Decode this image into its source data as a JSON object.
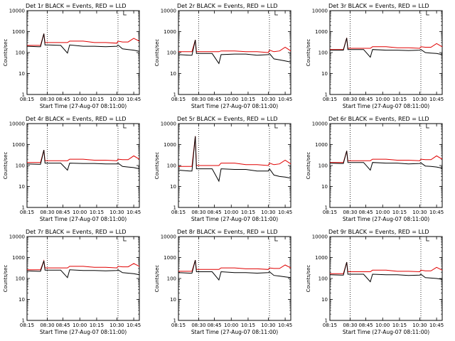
{
  "colors": {
    "events": "#000000",
    "lld": "#e00000",
    "background": "#ffffff"
  },
  "shared": {
    "xlabel": "Start Time (27-Aug-07 08:11:00)",
    "ylabel": "Counts/sec",
    "x_tick_labels": [
      "08:15",
      "08:30",
      "08:45",
      "10:00",
      "10:15",
      "10:30",
      "10:45"
    ],
    "y_tick_labels": [
      "1",
      "10",
      "100",
      "1000",
      "10000"
    ]
  },
  "chart_data": [
    {
      "type": "line",
      "title": "Det 1r BLACK = Events, RED = LLD",
      "xlabel": "Start Time (27-Aug-07 08:11:00)",
      "ylabel": "Counts/sec",
      "x_tick_labels": [
        "08:15",
        "08:30",
        "08:45",
        "10:00",
        "10:15",
        "10:30",
        "10:45"
      ],
      "ylim": [
        1,
        10000
      ],
      "yscale": "log",
      "series": [
        {
          "values": [
            200,
            190,
            190,
            800,
            230,
            230,
            220,
            95,
            230,
            200,
            200,
            190,
            200,
            230,
            150,
            140,
            130,
            115
          ]
        },
        {
          "values": [
            220,
            220,
            220,
            800,
            300,
            300,
            300,
            300,
            350,
            350,
            300,
            300,
            280,
            350,
            320,
            320,
            480,
            350
          ]
        }
      ]
    },
    {
      "type": "line",
      "title": "Det 2r BLACK = Events, RED = LLD",
      "xlabel": "Start Time (27-Aug-07 08:11:00)",
      "ylabel": "Counts/sec",
      "x_tick_labels": [
        "08:15",
        "08:30",
        "08:45",
        "10:00",
        "10:15",
        "10:30",
        "10:45"
      ],
      "ylim": [
        1,
        10000
      ],
      "yscale": "log",
      "series": [
        {
          "values": [
            80,
            75,
            75,
            400,
            90,
            90,
            90,
            30,
            80,
            85,
            85,
            75,
            80,
            90,
            50,
            45,
            40,
            35
          ]
        },
        {
          "values": [
            110,
            110,
            110,
            400,
            110,
            110,
            110,
            110,
            120,
            120,
            110,
            110,
            100,
            130,
            110,
            120,
            180,
            120
          ]
        }
      ]
    },
    {
      "type": "line",
      "title": "Det 3r BLACK = Events, RED = LLD",
      "xlabel": "Start Time (27-Aug-07 08:11:00)",
      "ylabel": "Counts/sec",
      "x_tick_labels": [
        "08:15",
        "08:30",
        "08:45",
        "10:00",
        "10:15",
        "10:30",
        "10:45"
      ],
      "ylim": [
        1,
        10000
      ],
      "yscale": "log",
      "series": [
        {
          "values": [
            130,
            130,
            130,
            500,
            140,
            140,
            140,
            60,
            140,
            130,
            130,
            125,
            130,
            140,
            100,
            95,
            90,
            80
          ]
        },
        {
          "values": [
            140,
            140,
            140,
            500,
            160,
            160,
            160,
            160,
            190,
            190,
            170,
            170,
            160,
            190,
            180,
            180,
            270,
            190
          ]
        }
      ]
    },
    {
      "type": "line",
      "title": "Det 4r BLACK = Events, RED = LLD",
      "xlabel": "Start Time (27-Aug-07 08:11:00)",
      "ylabel": "Counts/sec",
      "x_tick_labels": [
        "08:15",
        "08:30",
        "08:45",
        "10:00",
        "10:15",
        "10:30",
        "10:45"
      ],
      "ylim": [
        1,
        10000
      ],
      "yscale": "log",
      "series": [
        {
          "values": [
            120,
            115,
            115,
            550,
            130,
            130,
            130,
            60,
            130,
            125,
            125,
            120,
            120,
            130,
            90,
            85,
            80,
            70
          ]
        },
        {
          "values": [
            140,
            140,
            140,
            550,
            170,
            170,
            170,
            170,
            200,
            200,
            180,
            180,
            170,
            200,
            190,
            190,
            290,
            200
          ]
        }
      ]
    },
    {
      "type": "line",
      "title": "Det 5r BLACK = Events, RED = LLD",
      "xlabel": "Start Time (27-Aug-07 08:11:00)",
      "ylabel": "Counts/sec",
      "x_tick_labels": [
        "08:15",
        "08:30",
        "08:45",
        "10:00",
        "10:15",
        "10:30",
        "10:45"
      ],
      "ylim": [
        1,
        10000
      ],
      "yscale": "log",
      "series": [
        {
          "values": [
            60,
            55,
            55,
            2500,
            70,
            70,
            70,
            18,
            70,
            65,
            65,
            55,
            55,
            70,
            35,
            30,
            28,
            25
          ]
        },
        {
          "values": [
            90,
            90,
            90,
            2500,
            100,
            100,
            100,
            100,
            130,
            130,
            110,
            110,
            100,
            130,
            110,
            120,
            180,
            120
          ]
        }
      ]
    },
    {
      "type": "line",
      "title": "Det 6r BLACK = Events, RED = LLD",
      "xlabel": "Start Time (27-Aug-07 08:11:00)",
      "ylabel": "Counts/sec",
      "x_tick_labels": [
        "08:15",
        "08:30",
        "08:45",
        "10:00",
        "10:15",
        "10:30",
        "10:45"
      ],
      "ylim": [
        1,
        10000
      ],
      "yscale": "log",
      "series": [
        {
          "values": [
            130,
            125,
            125,
            500,
            140,
            140,
            140,
            60,
            140,
            130,
            130,
            120,
            125,
            135,
            95,
            90,
            85,
            75
          ]
        },
        {
          "values": [
            140,
            140,
            140,
            500,
            170,
            170,
            170,
            170,
            200,
            200,
            180,
            180,
            170,
            200,
            190,
            190,
            290,
            200
          ]
        }
      ]
    },
    {
      "type": "line",
      "title": "Det 7r BLACK = Events, RED = LLD",
      "xlabel": "Start Time (27-Aug-07 08:11:00)",
      "ylabel": "Counts/sec",
      "x_tick_labels": [
        "08:15",
        "08:30",
        "08:45",
        "10:00",
        "10:15",
        "10:30",
        "10:45"
      ],
      "ylim": [
        1,
        10000
      ],
      "yscale": "log",
      "series": [
        {
          "values": [
            230,
            220,
            220,
            700,
            250,
            250,
            250,
            110,
            260,
            240,
            240,
            230,
            240,
            260,
            190,
            180,
            170,
            150
          ]
        },
        {
          "values": [
            260,
            260,
            260,
            700,
            320,
            320,
            320,
            320,
            380,
            380,
            340,
            340,
            320,
            380,
            360,
            360,
            520,
            380
          ]
        }
      ]
    },
    {
      "type": "line",
      "title": "Det 8r BLACK = Events, RED = LLD",
      "xlabel": "Start Time (27-Aug-07 08:11:00)",
      "ylabel": "Counts/sec",
      "x_tick_labels": [
        "08:15",
        "08:30",
        "08:45",
        "10:00",
        "10:15",
        "10:30",
        "10:45"
      ],
      "ylim": [
        1,
        10000
      ],
      "yscale": "log",
      "series": [
        {
          "values": [
            190,
            180,
            180,
            750,
            210,
            210,
            210,
            85,
            210,
            190,
            190,
            180,
            190,
            210,
            140,
            130,
            120,
            110
          ]
        },
        {
          "values": [
            220,
            220,
            220,
            750,
            270,
            270,
            270,
            270,
            320,
            320,
            290,
            290,
            270,
            320,
            300,
            300,
            440,
            320
          ]
        }
      ]
    },
    {
      "type": "line",
      "title": "Det 9r BLACK = Events, RED = LLD",
      "xlabel": "Start Time (27-Aug-07 08:11:00)",
      "ylabel": "Counts/sec",
      "x_tick_labels": [
        "08:15",
        "08:30",
        "08:45",
        "10:00",
        "10:15",
        "10:30",
        "10:45"
      ],
      "ylim": [
        1,
        10000
      ],
      "yscale": "log",
      "series": [
        {
          "values": [
            150,
            145,
            145,
            600,
            160,
            160,
            160,
            70,
            160,
            150,
            150,
            140,
            145,
            160,
            110,
            105,
            100,
            90
          ]
        },
        {
          "values": [
            170,
            170,
            170,
            600,
            210,
            210,
            210,
            210,
            250,
            250,
            220,
            220,
            210,
            250,
            230,
            230,
            340,
            250
          ]
        }
      ]
    }
  ]
}
